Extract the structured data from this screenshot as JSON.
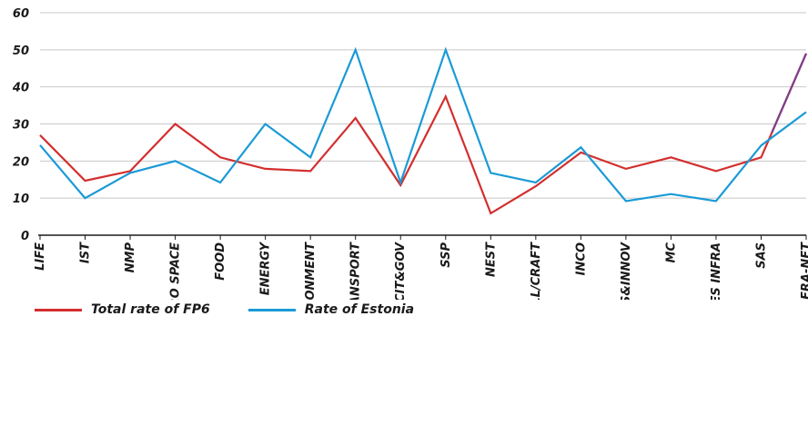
{
  "chart_data": {
    "type": "line",
    "title": "",
    "xlabel": "",
    "ylabel": "",
    "ylim": [
      0,
      60
    ],
    "yticks": [
      "0",
      "10",
      "20",
      "30",
      "40",
      "50",
      "60"
    ],
    "grid": true,
    "legend_position": "bottom-left",
    "categories": [
      "LIFE",
      "IST",
      "NMP",
      "AERO SPACE",
      "FOOD",
      "ENERGY",
      "ENVIRONMENT",
      "TRANSPORT",
      "CIT&GOV",
      "SSP",
      "NEST",
      "COLL/CRAFT",
      "INCO",
      "RES&INNOV",
      "MC",
      "RES INFRA",
      "SAS",
      "ERA-NET"
    ],
    "series": [
      {
        "name": "Total rate of FP6",
        "color": "#d32f2f",
        "values": [
          27,
          14.7,
          17.3,
          30,
          21,
          17.9,
          17.3,
          31.6,
          13.5,
          37.4,
          5.9,
          13.2,
          22.3,
          17.9,
          21,
          17.3,
          21,
          49
        ]
      },
      {
        "name": "Rate of Estonia",
        "color": "#1a9ad6",
        "values": [
          24.3,
          10,
          16.8,
          20,
          14.2,
          30,
          21,
          50,
          14.2,
          50,
          16.8,
          14.2,
          23.7,
          9.2,
          11.1,
          9.2,
          24.2,
          33.2
        ]
      }
    ],
    "overlap_color": "#7b3f8c"
  }
}
